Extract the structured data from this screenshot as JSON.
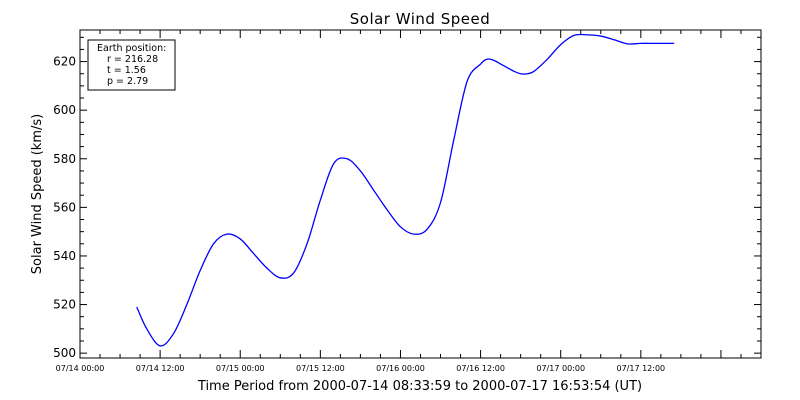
{
  "chart_data": {
    "type": "line",
    "title": "Solar Wind Speed",
    "xlabel": "Time Period from 2000-07-14 08:33:59 to 2000-07-17 16:53:54 (UT)",
    "ylabel": "Solar Wind Speed (km/s)",
    "ylim": [
      498,
      633
    ],
    "y_ticks": [
      500,
      520,
      540,
      560,
      580,
      600,
      620
    ],
    "xlim": [
      "07/14 00:00",
      "07/18 06:00"
    ],
    "x_ticks": [
      "07/14 00:00",
      "07/14 12:00",
      "07/15 00:00",
      "07/15 12:00",
      "07/16 00:00",
      "07/16 12:00",
      "07/17 00:00",
      "07/17 12:00"
    ],
    "grid": false,
    "line_color": "#0000ff",
    "series": [
      {
        "x": [
          "07/14 08:30",
          "07/14 10:00",
          "07/14 12:00",
          "07/14 14:00",
          "07/14 16:00",
          "07/14 18:00",
          "07/14 20:00",
          "07/14 22:00",
          "07/15 00:00",
          "07/15 02:00",
          "07/15 04:00",
          "07/15 06:00",
          "07/15 08:00",
          "07/15 10:00",
          "07/15 12:00",
          "07/15 14:00",
          "07/15 16:00",
          "07/15 18:00",
          "07/15 20:00",
          "07/15 22:00",
          "07/16 00:00",
          "07/16 02:00",
          "07/16 04:00",
          "07/16 06:00",
          "07/16 08:00",
          "07/16 10:00",
          "07/16 12:00",
          "07/16 13:00",
          "07/16 14:00",
          "07/16 15:00",
          "07/16 16:00",
          "07/16 17:00",
          "07/16 18:00",
          "07/16 19:00",
          "07/16 20:00",
          "07/16 22:00",
          "07/17 00:00",
          "07/17 02:00",
          "07/17 04:00",
          "07/17 06:00",
          "07/17 08:00",
          "07/17 10:00",
          "07/17 12:00",
          "07/17 14:00",
          "07/17 16:00",
          "07/17 17:00"
        ],
        "y": [
          519,
          510,
          503,
          508,
          520,
          534,
          545,
          549,
          547,
          541,
          535,
          531,
          533,
          545,
          563,
          578,
          580,
          575,
          567,
          559,
          552,
          549,
          551,
          562,
          588,
          612,
          619,
          621,
          620.5,
          619,
          617.5,
          616,
          615,
          615,
          616,
          621,
          627,
          630.8,
          631,
          630.5,
          629,
          627.3,
          627.5,
          627.5,
          627.5,
          627.5
        ]
      }
    ],
    "info_box": {
      "heading": "Earth position:",
      "lines": [
        "r = 216.28",
        "t = 1.56",
        "p = 2.79"
      ]
    }
  }
}
